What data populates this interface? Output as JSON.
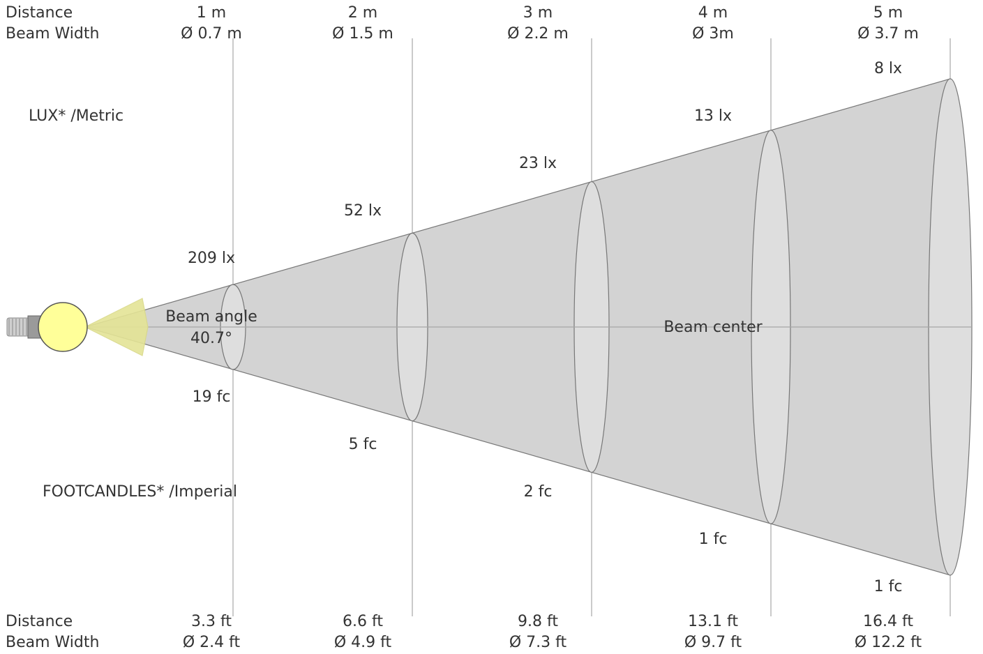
{
  "header_metric": {
    "distance_label": "Distance",
    "beam_width_label": "Beam Width",
    "columns": [
      {
        "distance": "1 m",
        "beam_width": "Ø 0.7 m"
      },
      {
        "distance": "2 m",
        "beam_width": "Ø 1.5 m"
      },
      {
        "distance": "3 m",
        "beam_width": "Ø 2.2 m"
      },
      {
        "distance": "4 m",
        "beam_width": "Ø 3m"
      },
      {
        "distance": "5 m",
        "beam_width": "Ø 3.7 m"
      }
    ]
  },
  "footer_imperial": {
    "distance_label": "Distance",
    "beam_width_label": "Beam Width",
    "columns": [
      {
        "distance": "3.3 ft",
        "beam_width": "Ø 2.4 ft"
      },
      {
        "distance": "6.6 ft",
        "beam_width": "Ø 4.9 ft"
      },
      {
        "distance": "9.8 ft",
        "beam_width": "Ø 7.3 ft"
      },
      {
        "distance": "13.1 ft",
        "beam_width": "Ø 9.7 ft"
      },
      {
        "distance": "16.4 ft",
        "beam_width": "Ø 12.2 ft"
      }
    ]
  },
  "lux_title": "LUX* /Metric",
  "footcandles_title": "FOOTCANDLES* /Imperial",
  "lux_values": [
    "209 lx",
    "52 lx",
    "23 lx",
    "13 lx",
    "8 lx"
  ],
  "fc_values": [
    "19 fc",
    "5 fc",
    "2 fc",
    "1 fc",
    "1 fc"
  ],
  "beam_angle_label": "Beam angle",
  "beam_angle_value": "40.7°",
  "beam_center_label": "Beam center",
  "colors": {
    "cone_fill": "#d3d3d3",
    "ellipse_fill": "#dedede",
    "outline": "#777777",
    "guide_line": "#a6a6a6",
    "bulb_fill": "#ffff99",
    "angle_fill": "#e4e496",
    "angle_stroke": "#d8d888",
    "text": "#333333"
  }
}
